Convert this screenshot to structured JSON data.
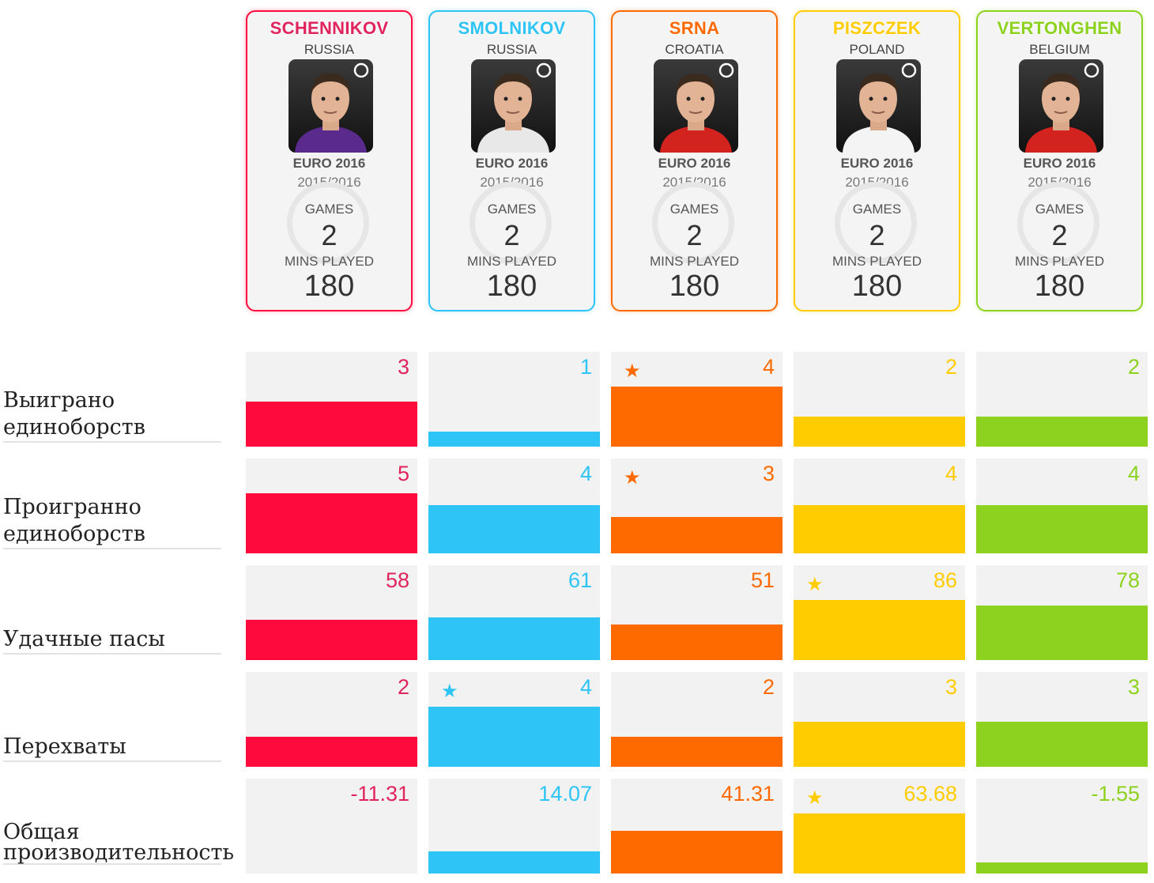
{
  "players": [
    {
      "name": "SCHENNIKOV",
      "country": "RUSSIA",
      "tournament": "EURO 2016",
      "season": "2015/2016",
      "games_label": "GAMES",
      "games": "2",
      "mins_label": "MINS PLAYED",
      "mins": "180",
      "color": "#ff0a3c",
      "text_color": "#e0245e",
      "kit_color": "#5a2a8c"
    },
    {
      "name": "SMOLNIKOV",
      "country": "RUSSIA",
      "tournament": "EURO 2016",
      "season": "2015/2016",
      "games_label": "GAMES",
      "games": "2",
      "mins_label": "MINS PLAYED",
      "mins": "180",
      "color": "#2ec4f6",
      "text_color": "#2ec4f6",
      "kit_color": "#e8e8e8"
    },
    {
      "name": "SRNA",
      "country": "CROATIA",
      "tournament": "EURO 2016",
      "season": "2015/2016",
      "games_label": "GAMES",
      "games": "2",
      "mins_label": "MINS PLAYED",
      "mins": "180",
      "color": "#ff6a00",
      "text_color": "#ff6a00",
      "kit_color": "#d2231f"
    },
    {
      "name": "PISZCZEK",
      "country": "POLAND",
      "tournament": "EURO 2016",
      "season": "2015/2016",
      "games_label": "GAMES",
      "games": "2",
      "mins_label": "MINS PLAYED",
      "mins": "180",
      "color": "#ffcc00",
      "text_color": "#ffcc00",
      "kit_color": "#f4f4f4"
    },
    {
      "name": "VERTONGHEN",
      "country": "BELGIUM",
      "tournament": "EURO 2016",
      "season": "2015/2016",
      "games_label": "GAMES",
      "games": "2",
      "mins_label": "MINS PLAYED",
      "mins": "180",
      "color": "#8cd21e",
      "text_color": "#8cd21e",
      "kit_color": "#d2231f"
    }
  ],
  "chart_data": {
    "type": "bar",
    "categories": [
      "SCHENNIKOV",
      "SMOLNIKOV",
      "SRNA",
      "PISZCZEK",
      "VERTONGHEN"
    ],
    "metrics": [
      {
        "label_lines": [
          "Выиграно",
          "единоборств"
        ],
        "values": [
          3,
          1,
          4,
          2,
          2
        ],
        "display": [
          "3",
          "1",
          "4",
          "2",
          "2"
        ],
        "star": 2
      },
      {
        "label_lines": [
          "Проигранно",
          "единоборств"
        ],
        "values": [
          5,
          4,
          3,
          4,
          4
        ],
        "display": [
          "5",
          "4",
          "3",
          "4",
          "4"
        ],
        "star": 2
      },
      {
        "label_lines": [
          "Удачные пасы"
        ],
        "values": [
          58,
          61,
          51,
          86,
          78
        ],
        "display": [
          "58",
          "61",
          "51",
          "86",
          "78"
        ],
        "star": 3
      },
      {
        "label_lines": [
          "Перехваты"
        ],
        "values": [
          2,
          4,
          2,
          3,
          3
        ],
        "display": [
          "2",
          "4",
          "2",
          "3",
          "3"
        ],
        "star": 1
      },
      {
        "label_lines": [
          "Общая",
          "производительность"
        ],
        "values": [
          -11.31,
          14.07,
          41.31,
          63.68,
          -1.55
        ],
        "display": [
          "-11.31",
          "14.07",
          "41.31",
          "63.68",
          "-1.55"
        ],
        "star": 3
      }
    ],
    "star_symbol": "★"
  }
}
